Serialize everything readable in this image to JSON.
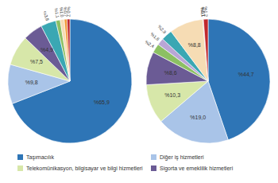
{
  "chart_data": [
    {
      "type": "pie",
      "categories": [
        "Taşımacılık",
        "Diğer iş hizmetleri",
        "Telekomünikasyon, bilgisayar ve bilgi hizmetleri",
        "Sigorta ve emeklilik hizmetleri",
        null,
        null,
        null,
        null,
        null
      ],
      "values": [
        65.9,
        9.8,
        7.5,
        4.9,
        3.8,
        1.1,
        1.0,
        0.7,
        0.7
      ],
      "value_labels": [
        "%65,9",
        "%9,8",
        "%7,5",
        "%4,9",
        "%3,8",
        "%1,1",
        "%1,0",
        "%0,7",
        "%0,7"
      ],
      "colors": [
        "#2e75b6",
        "#a9c4e8",
        "#d7e7a9",
        "#6b5b95",
        "#3aa7b3",
        "#8cc063",
        "#f6dcb4",
        "#f29b38",
        "#c0282d"
      ],
      "data_labels": true,
      "legend": "bottom"
    },
    {
      "type": "pie",
      "categories": [
        "Taşımacılık",
        "Diğer iş hizmetleri",
        "Telekomünikasyon, bilgisayar ve bilgi hizmetleri",
        "Sigorta ve emeklilik hizmetleri",
        null,
        null,
        null,
        null,
        null,
        null,
        null
      ],
      "values": [
        44.7,
        19.0,
        10.3,
        8.6,
        2.4,
        1.8,
        2.9,
        8.8,
        0.1,
        0.1,
        1.2
      ],
      "value_labels": [
        "%44,7",
        "%19,0",
        "%10,3",
        "%8,6",
        "%2,4",
        "%1,8",
        "%2,9",
        "%8,8",
        "%0,1",
        "%0,1",
        "%1,2"
      ],
      "colors": [
        "#2e75b6",
        "#a9c4e8",
        "#d7e7a9",
        "#6b5b95",
        "#8cc063",
        "#b9a6d6",
        "#3aa7b3",
        "#f6dcb4",
        "#7f7f7f",
        "#f29b38",
        "#c0282d"
      ],
      "data_labels": true
    }
  ]
}
